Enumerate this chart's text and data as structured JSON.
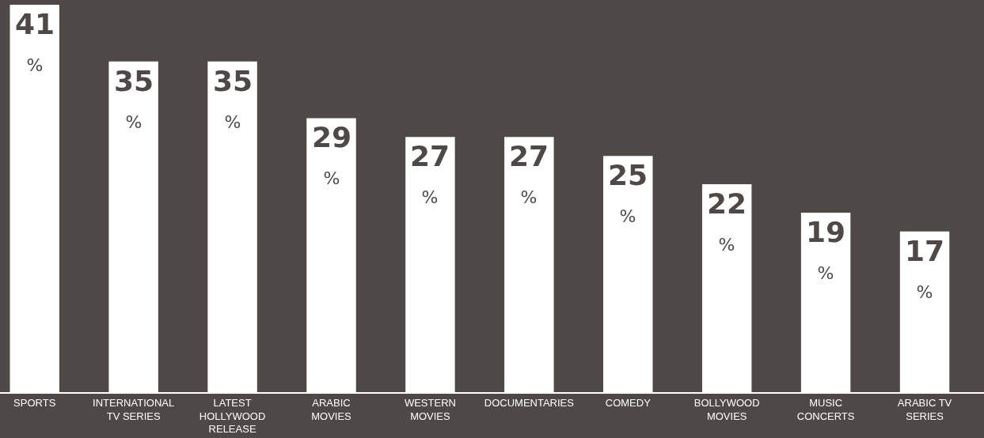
{
  "chart_data": {
    "type": "bar",
    "categories": [
      "SPORTS",
      "INTERNATIONAL TV SERIES",
      "LATEST HOLLYWOOD RELEASE",
      "ARABIC MOVIES",
      "WESTERN MOVIES",
      "DOCUMENTARIES",
      "COMEDY",
      "BOLLYWOOD MOVIES",
      "MUSIC CONCERTS",
      "ARABIC TV SERIES"
    ],
    "values": [
      41,
      35,
      35,
      29,
      27,
      27,
      25,
      22,
      19,
      17
    ],
    "value_labels": [
      "41%",
      "35%",
      "35%",
      "29%",
      "27%",
      "27%",
      "25%",
      "22%",
      "19%",
      "17%"
    ],
    "color": "#ffffff",
    "grid": false,
    "legend": false
  }
}
